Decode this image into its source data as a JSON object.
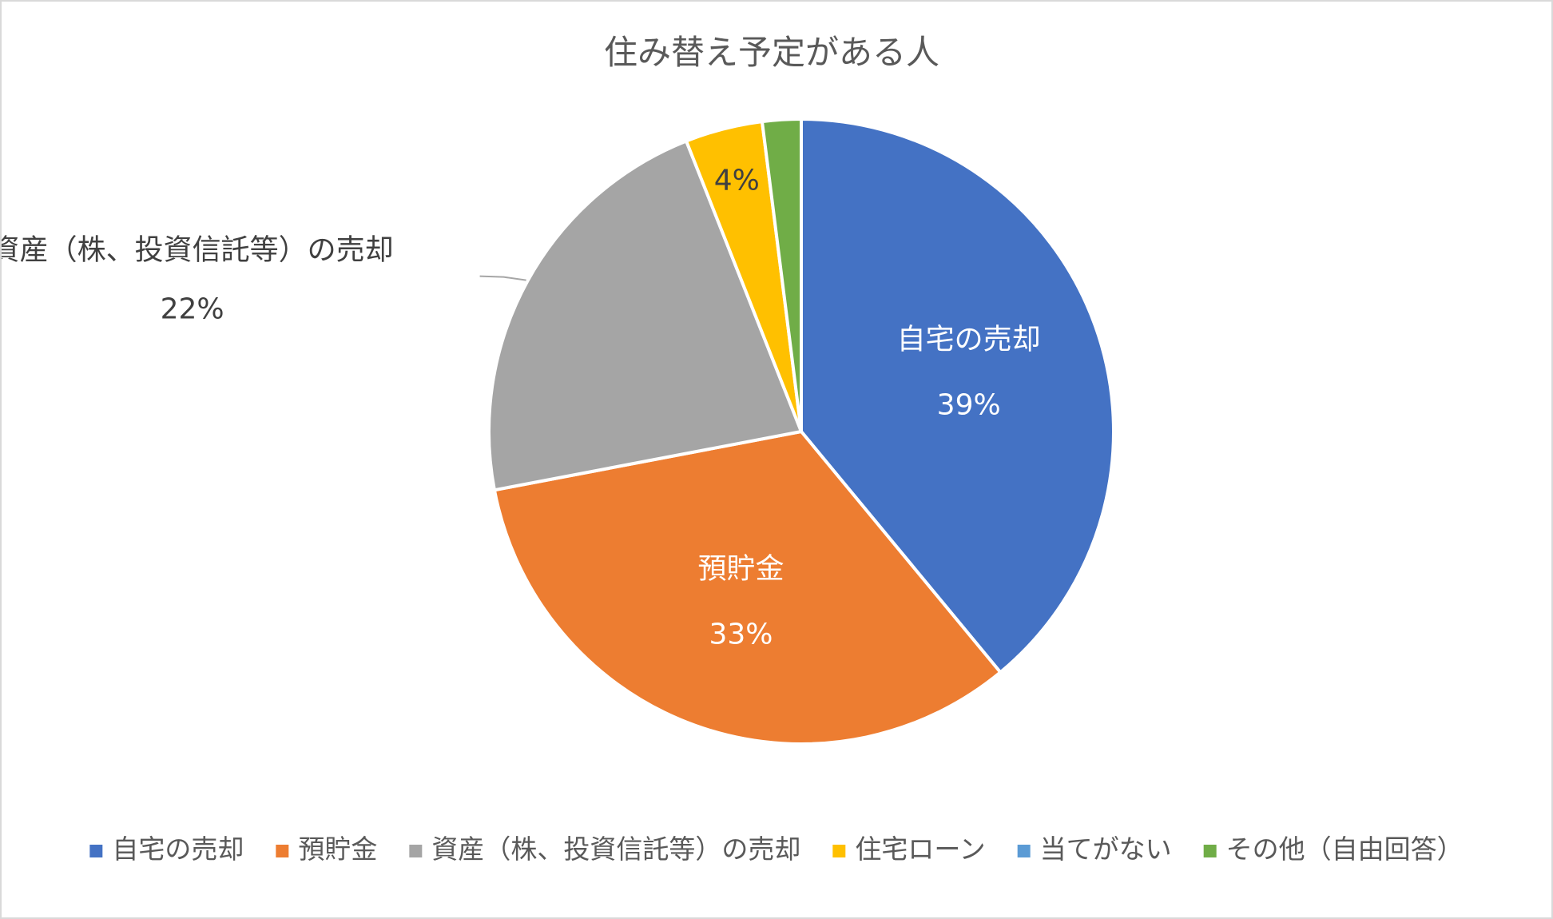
{
  "chart_data": {
    "type": "pie",
    "title": "住み替え予定がある人",
    "legend_position": "bottom",
    "slices": [
      {
        "name": "自宅の売却",
        "value": 39,
        "label": "39%",
        "color": "#4472C4"
      },
      {
        "name": "預貯金",
        "value": 33,
        "label": "33%",
        "color": "#ED7D31"
      },
      {
        "name": "資産（株、投資信託等）の売却",
        "value": 22,
        "label": "22%",
        "color": "#A5A5A5"
      },
      {
        "name": "住宅ローン",
        "value": 4,
        "label": "4%",
        "color": "#FFC000"
      },
      {
        "name": "当てがない",
        "value": 0,
        "label": "",
        "color": "#5B9BD5"
      },
      {
        "name": "その他（自由回答）",
        "value": 2,
        "label": "",
        "color": "#70AD47"
      }
    ]
  }
}
